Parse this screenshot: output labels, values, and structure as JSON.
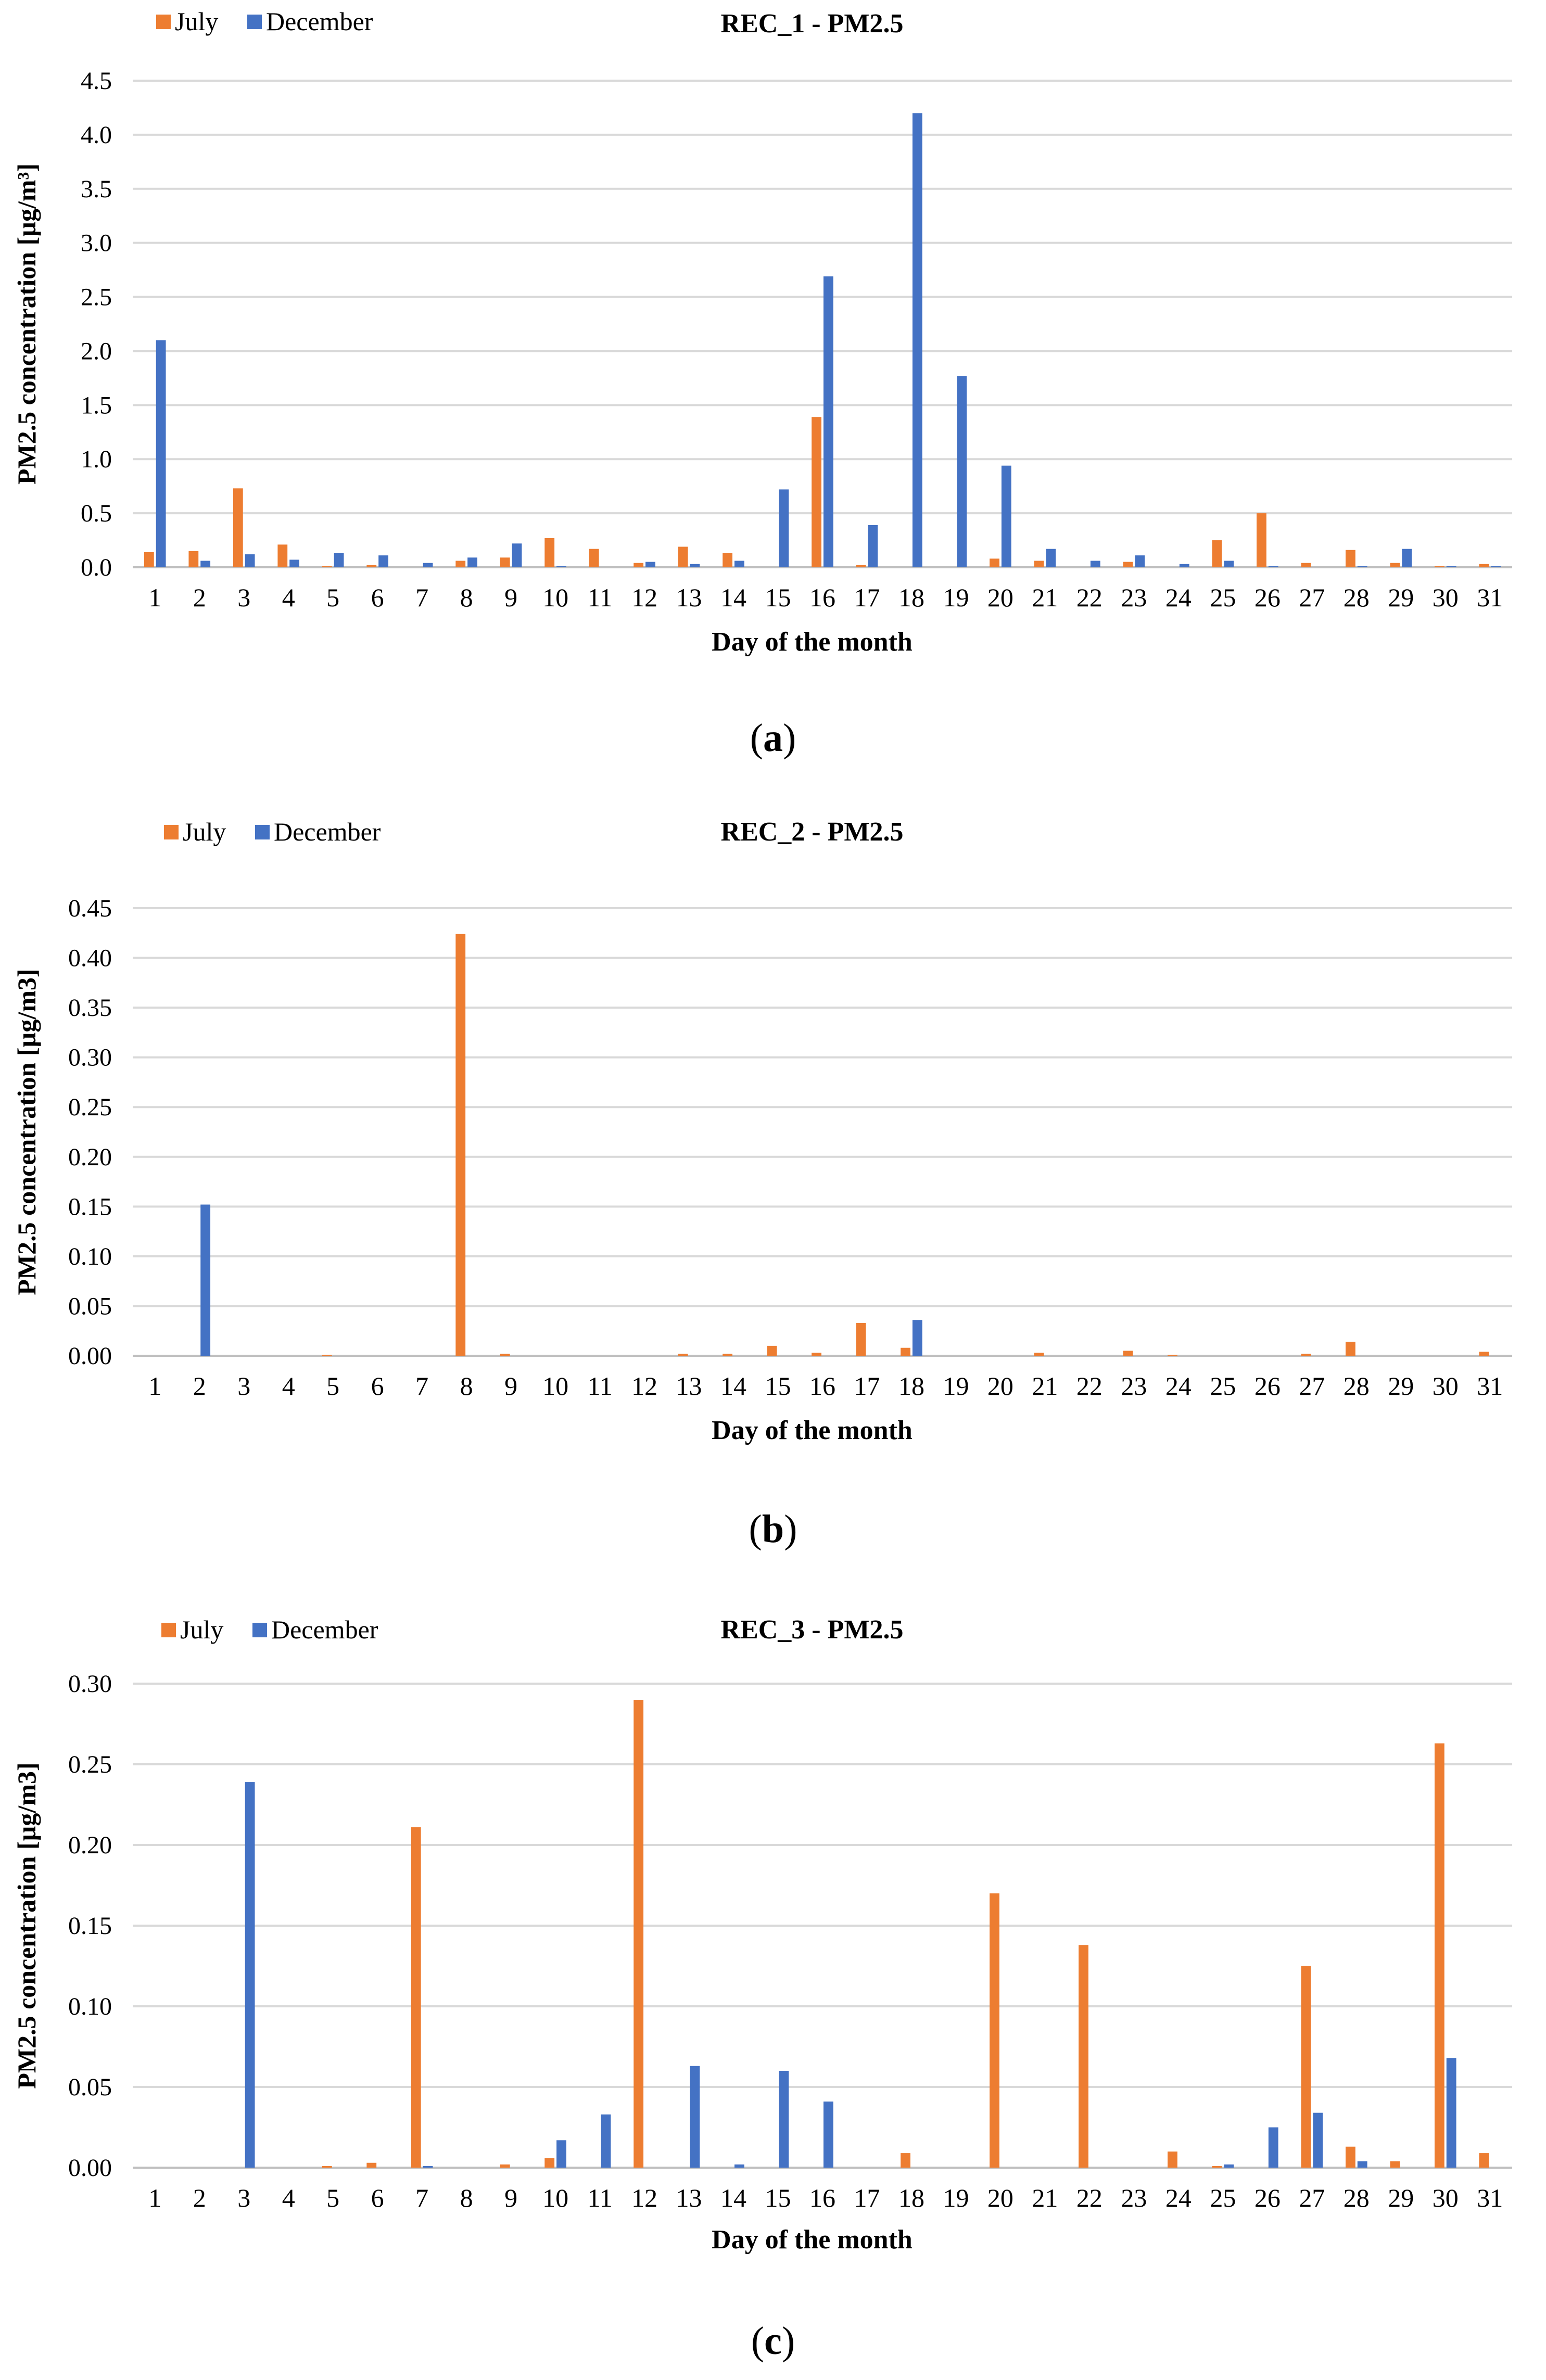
{
  "colors": {
    "july": "#ED7D31",
    "december": "#4472C4",
    "grid": "#D9D9D9",
    "text": "#000000"
  },
  "charts": [
    {
      "caption": "a",
      "chart_data": {
        "type": "bar",
        "title": "REC_1 - PM2.5",
        "xlabel": "Day of the month",
        "ylabel": "PM2.5 concentration [µg/m³]",
        "ylim": [
          0,
          4.5
        ],
        "yticks": [
          "0.0",
          "0.5",
          "1.0",
          "1.5",
          "2.0",
          "2.5",
          "3.0",
          "3.5",
          "4.0",
          "4.5"
        ],
        "categories": [
          "1",
          "2",
          "3",
          "4",
          "5",
          "6",
          "7",
          "8",
          "9",
          "10",
          "11",
          "12",
          "13",
          "14",
          "15",
          "16",
          "17",
          "18",
          "19",
          "20",
          "21",
          "22",
          "23",
          "24",
          "25",
          "26",
          "27",
          "28",
          "29",
          "30",
          "31"
        ],
        "legend": [
          "July",
          "December"
        ],
        "legend_position": "top-left",
        "series": [
          {
            "name": "July",
            "values": [
              0.14,
              0.15,
              0.73,
              0.21,
              0.01,
              0.02,
              0.0,
              0.06,
              0.09,
              0.27,
              0.17,
              0.04,
              0.19,
              0.13,
              0.0,
              1.39,
              0.02,
              0.0,
              0.0,
              0.08,
              0.06,
              0.0,
              0.05,
              0.0,
              0.25,
              0.5,
              0.04,
              0.16,
              0.04,
              0.01,
              0.03
            ]
          },
          {
            "name": "December",
            "values": [
              2.1,
              0.06,
              0.12,
              0.07,
              0.13,
              0.11,
              0.04,
              0.09,
              0.22,
              0.01,
              0.0,
              0.05,
              0.03,
              0.06,
              0.72,
              2.69,
              0.39,
              4.2,
              1.77,
              0.94,
              0.17,
              0.06,
              0.11,
              0.03,
              0.06,
              0.01,
              0.0,
              0.01,
              0.17,
              0.01,
              0.01
            ]
          }
        ]
      }
    },
    {
      "caption": "b",
      "chart_data": {
        "type": "bar",
        "title": "REC_2 - PM2.5",
        "xlabel": "Day of the month",
        "ylabel": "PM2.5 concentration [µg/m3]",
        "ylim": [
          0,
          0.45
        ],
        "yticks": [
          "0.00",
          "0.05",
          "0.10",
          "0.15",
          "0.20",
          "0.25",
          "0.30",
          "0.35",
          "0.40",
          "0.45"
        ],
        "categories": [
          "1",
          "2",
          "3",
          "4",
          "5",
          "6",
          "7",
          "8",
          "9",
          "10",
          "11",
          "12",
          "13",
          "14",
          "15",
          "16",
          "17",
          "18",
          "19",
          "20",
          "21",
          "22",
          "23",
          "24",
          "25",
          "26",
          "27",
          "28",
          "29",
          "30",
          "31"
        ],
        "legend": [
          "July",
          "December"
        ],
        "legend_position": "top-left",
        "series": [
          {
            "name": "July",
            "values": [
              0,
              0,
              0,
              0,
              0.001,
              0,
              0,
              0.424,
              0.002,
              0,
              0,
              0,
              0.002,
              0.002,
              0.01,
              0.003,
              0.033,
              0.008,
              0,
              0,
              0.003,
              0,
              0.005,
              0.001,
              0,
              0,
              0.002,
              0.014,
              0,
              0,
              0.004
            ]
          },
          {
            "name": "December",
            "values": [
              0,
              0.152,
              0,
              0,
              0,
              0,
              0,
              0,
              0,
              0,
              0,
              0,
              0,
              0,
              0,
              0,
              0,
              0.036,
              0,
              0,
              0,
              0,
              0,
              0,
              0,
              0,
              0,
              0,
              0,
              0,
              0
            ]
          }
        ]
      }
    },
    {
      "caption": "c",
      "chart_data": {
        "type": "bar",
        "title": "REC_3 - PM2.5",
        "xlabel": "Day of the month",
        "ylabel": "PM2.5 concentration [µg/m3]",
        "ylim": [
          0,
          0.3
        ],
        "yticks": [
          "0.00",
          "0.05",
          "0.10",
          "0.15",
          "0.20",
          "0.25",
          "0.30"
        ],
        "categories": [
          "1",
          "2",
          "3",
          "4",
          "5",
          "6",
          "7",
          "8",
          "9",
          "10",
          "11",
          "12",
          "13",
          "14",
          "15",
          "16",
          "17",
          "18",
          "19",
          "20",
          "21",
          "22",
          "23",
          "24",
          "25",
          "26",
          "27",
          "28",
          "29",
          "30",
          "31"
        ],
        "legend": [
          "July",
          "December"
        ],
        "legend_position": "top-left",
        "series": [
          {
            "name": "July",
            "values": [
              0,
              0,
              0,
              0,
              0.001,
              0.003,
              0.211,
              0,
              0.002,
              0.006,
              0,
              0.29,
              0,
              0,
              0,
              0,
              0,
              0.009,
              0,
              0.17,
              0,
              0.138,
              0,
              0.01,
              0.001,
              0,
              0.125,
              0.013,
              0.004,
              0.263,
              0.009
            ]
          },
          {
            "name": "December",
            "values": [
              0,
              0,
              0.239,
              0,
              0,
              0,
              0.001,
              0,
              0,
              0.017,
              0.033,
              0,
              0.063,
              0.002,
              0.06,
              0.041,
              0,
              0,
              0,
              0,
              0,
              0,
              0,
              0,
              0.002,
              0.025,
              0.034,
              0.004,
              0,
              0.068,
              0
            ]
          }
        ]
      }
    }
  ]
}
